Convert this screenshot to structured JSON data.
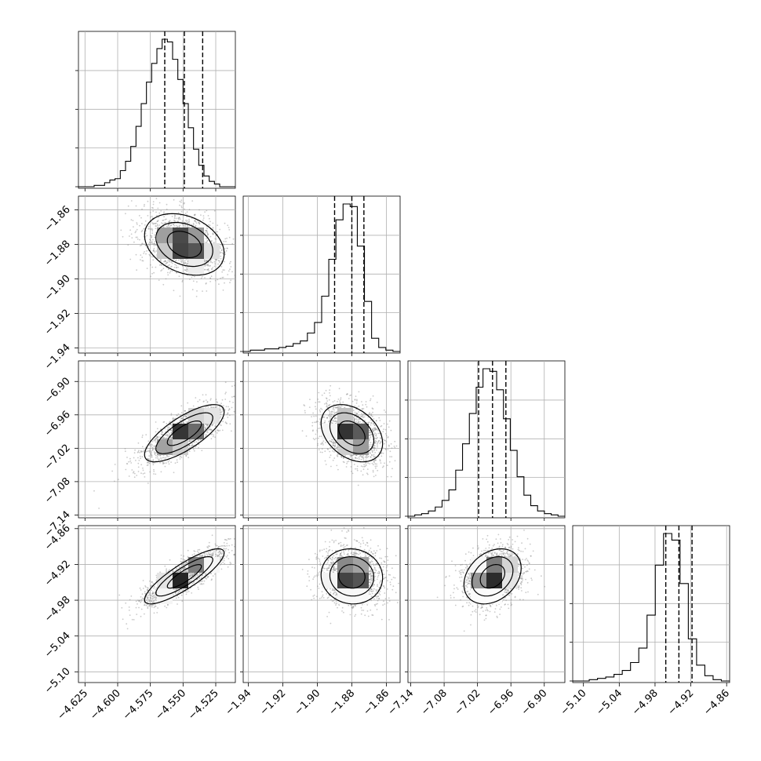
{
  "chart_data": {
    "type": "corner",
    "title": "",
    "grid": true,
    "colors": {
      "line": "#000000",
      "grid": "#b0b0b0",
      "scatter": "#8a8a8a",
      "background": "#ffffff"
    },
    "parameters": [
      {
        "ticks": [
          -4.625,
          -4.6,
          -4.575,
          -4.55,
          -4.525
        ],
        "tick_labels": [
          "−4.625",
          "−4.600",
          "−4.575",
          "−4.550",
          "−4.525"
        ],
        "range": [
          -4.63,
          -4.51
        ],
        "quantiles": [
          -4.564,
          -4.549,
          -4.535
        ],
        "hist_edges": [
          -4.63,
          -4.626,
          -4.622,
          -4.618,
          -4.614,
          -4.61,
          -4.606,
          -4.602,
          -4.598,
          -4.594,
          -4.59,
          -4.586,
          -4.582,
          -4.578,
          -4.574,
          -4.57,
          -4.566,
          -4.562,
          -4.558,
          -4.554,
          -4.55,
          -4.546,
          -4.542,
          -4.538,
          -4.534,
          -4.53,
          -4.526,
          -4.522,
          -4.518,
          -4.514,
          -4.51
        ],
        "hist_counts": [
          0,
          0,
          0,
          1,
          1,
          3,
          5,
          6,
          12,
          19,
          30,
          45,
          62,
          78,
          92,
          103,
          110,
          108,
          95,
          80,
          62,
          44,
          28,
          16,
          8,
          4,
          2,
          0,
          0,
          0
        ],
        "hist_counts_note_hidden": false
      },
      {
        "ticks": [
          -1.94,
          -1.92,
          -1.9,
          -1.88,
          -1.86
        ],
        "tick_labels": [
          "−1.94",
          "−1.92",
          "−1.90",
          "−1.88",
          "−1.86"
        ],
        "range": [
          -1.943,
          -1.852
        ],
        "quantiles": [
          -1.89,
          -1.88,
          -1.873
        ],
        "hist_edges": [],
        "hist_counts": [
          0,
          1,
          1,
          2,
          2,
          3,
          4,
          6,
          8,
          14,
          22,
          42,
          70,
          100,
          112,
          110,
          80,
          38,
          10,
          3,
          1,
          0
        ],
        "hist_counts_note_hidden": false
      },
      {
        "ticks": [
          -7.14,
          -7.08,
          -7.02,
          -6.96,
          -6.9
        ],
        "tick_labels": [
          "−7.14",
          "−7.08",
          "−7.02",
          "−6.96",
          "−6.90"
        ],
        "range": [
          -7.145,
          -6.863
        ],
        "quantiles": [
          -7.018,
          -6.993,
          -6.969
        ],
        "hist_edges": [],
        "hist_counts": [
          0,
          1,
          2,
          4,
          7,
          12,
          20,
          35,
          55,
          78,
          98,
          112,
          110,
          96,
          74,
          50,
          30,
          16,
          8,
          4,
          2,
          1,
          0
        ],
        "hist_counts_note_hidden": false
      },
      {
        "ticks": [
          -5.1,
          -5.04,
          -4.98,
          -4.92,
          -4.86
        ],
        "tick_labels": [
          "−5.10",
          "−5.04",
          "−4.98",
          "−4.92",
          "−4.86"
        ],
        "range": [
          -5.118,
          -4.855
        ],
        "quantiles": [
          -4.962,
          -4.94,
          -4.918
        ],
        "hist_edges": [],
        "hist_counts": [
          0,
          0,
          1,
          2,
          3,
          5,
          8,
          14,
          25,
          50,
          88,
          112,
          107,
          74,
          32,
          12,
          4,
          1,
          0
        ],
        "hist_counts_note_hidden": false
      }
    ],
    "correlations": {
      "1-0": -0.3,
      "2-0": 0.75,
      "2-1": -0.35,
      "3-0": 0.85,
      "3-1": -0.05,
      "3-2": 0.3
    }
  }
}
